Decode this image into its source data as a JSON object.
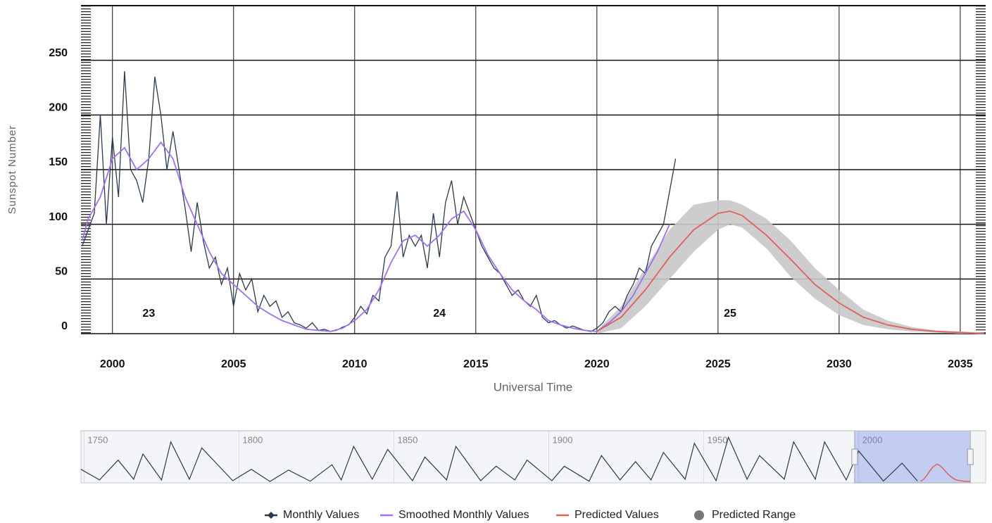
{
  "chart_data": {
    "type": "line",
    "y_label": "Sunspot Number",
    "x_label": "Universal Time",
    "xlim": [
      1998.7,
      2036.05
    ],
    "xticks": [
      2000,
      2005,
      2010,
      2015,
      2020,
      2025,
      2030,
      2035
    ],
    "ylim": [
      0,
      300
    ],
    "yticks": [
      0,
      50,
      100,
      150,
      200,
      250
    ],
    "grid": true,
    "annotations": [
      {
        "text": "23",
        "x": 2001.5
      },
      {
        "text": "24",
        "x": 2013.5
      },
      {
        "text": "25",
        "x": 2025.5
      }
    ],
    "series": [
      {
        "name": "Monthly Values",
        "color": "#2b3a4a",
        "x": [
          1998.75,
          1999,
          1999.25,
          1999.5,
          1999.75,
          2000,
          2000.25,
          2000.5,
          2000.75,
          2001,
          2001.25,
          2001.5,
          2001.75,
          2002,
          2002.25,
          2002.5,
          2002.75,
          2003,
          2003.25,
          2003.5,
          2003.75,
          2004,
          2004.25,
          2004.5,
          2004.75,
          2005,
          2005.25,
          2005.5,
          2005.75,
          2006,
          2006.25,
          2006.5,
          2006.75,
          2007,
          2007.25,
          2007.5,
          2007.75,
          2008,
          2008.25,
          2008.5,
          2008.75,
          2009,
          2009.25,
          2009.5,
          2009.75,
          2010,
          2010.25,
          2010.5,
          2010.75,
          2011,
          2011.25,
          2011.5,
          2011.75,
          2012,
          2012.25,
          2012.5,
          2012.75,
          2013,
          2013.25,
          2013.5,
          2013.75,
          2014,
          2014.25,
          2014.5,
          2014.75,
          2015,
          2015.25,
          2015.5,
          2015.75,
          2016,
          2016.25,
          2016.5,
          2016.75,
          2017,
          2017.25,
          2017.5,
          2017.75,
          2018,
          2018.25,
          2018.5,
          2018.75,
          2019,
          2019.25,
          2019.5,
          2019.75,
          2020,
          2020.25,
          2020.5,
          2020.75,
          2021,
          2021.25,
          2021.5,
          2021.75,
          2022,
          2022.25,
          2022.5,
          2022.75,
          2023,
          2023.25
        ],
        "values": [
          80,
          95,
          110,
          200,
          100,
          180,
          125,
          240,
          150,
          140,
          120,
          160,
          235,
          200,
          150,
          185,
          150,
          115,
          75,
          120,
          85,
          60,
          70,
          45,
          60,
          25,
          55,
          40,
          50,
          20,
          35,
          25,
          30,
          15,
          20,
          10,
          8,
          5,
          10,
          3,
          4,
          2,
          3,
          6,
          8,
          15,
          25,
          18,
          35,
          30,
          70,
          80,
          130,
          70,
          90,
          80,
          90,
          60,
          110,
          70,
          120,
          140,
          100,
          125,
          110,
          95,
          80,
          70,
          60,
          55,
          45,
          35,
          40,
          30,
          25,
          35,
          15,
          10,
          12,
          8,
          5,
          7,
          5,
          3,
          2,
          5,
          10,
          20,
          25,
          20,
          35,
          45,
          60,
          55,
          80,
          90,
          100,
          130,
          160
        ]
      },
      {
        "name": "Smoothed Monthly Values",
        "color": "#a070f0",
        "x": [
          1998.75,
          1999,
          1999.5,
          2000,
          2000.5,
          2001,
          2001.5,
          2002,
          2002.5,
          2003,
          2003.5,
          2004,
          2004.5,
          2005,
          2005.5,
          2006,
          2006.5,
          2007,
          2007.5,
          2008,
          2008.5,
          2009,
          2009.5,
          2010,
          2010.5,
          2011,
          2011.5,
          2012,
          2012.5,
          2013,
          2013.5,
          2014,
          2014.5,
          2015,
          2015.5,
          2016,
          2016.5,
          2017,
          2017.5,
          2018,
          2018.5,
          2019,
          2019.5,
          2020,
          2020.5,
          2021,
          2021.5,
          2022,
          2022.5,
          2023
        ],
        "values": [
          85,
          105,
          125,
          160,
          170,
          150,
          160,
          175,
          160,
          125,
          100,
          75,
          55,
          45,
          35,
          25,
          18,
          12,
          8,
          4,
          3,
          2,
          5,
          12,
          22,
          40,
          65,
          85,
          90,
          80,
          90,
          105,
          112,
          95,
          72,
          55,
          40,
          30,
          22,
          12,
          8,
          5,
          3,
          2,
          10,
          20,
          35,
          55,
          75,
          100
        ]
      },
      {
        "name": "Predicted Values",
        "color": "#e0605a",
        "x": [
          2020,
          2021,
          2022,
          2023,
          2024,
          2025,
          2025.5,
          2026,
          2027,
          2028,
          2029,
          2030,
          2031,
          2032,
          2033,
          2034,
          2035,
          2036
        ],
        "values": [
          2,
          15,
          40,
          70,
          95,
          110,
          112,
          108,
          90,
          68,
          45,
          28,
          15,
          8,
          4,
          2,
          1,
          0
        ]
      },
      {
        "name": "Predicted Range",
        "color": "#c8c8c8",
        "x": [
          2020,
          2021,
          2022,
          2023,
          2024,
          2025,
          2025.5,
          2026,
          2027,
          2028,
          2029,
          2030,
          2031,
          2032,
          2033,
          2034,
          2035,
          2036
        ],
        "high": [
          3,
          25,
          60,
          95,
          118,
          122,
          122,
          118,
          105,
          85,
          60,
          40,
          22,
          12,
          6,
          3,
          2,
          1
        ],
        "low": [
          0,
          5,
          25,
          50,
          75,
          95,
          100,
          97,
          78,
          52,
          32,
          17,
          8,
          4,
          2,
          1,
          0,
          0
        ]
      }
    ],
    "navigator": {
      "xlim": [
        1749,
        2041
      ],
      "xticks": [
        1750,
        1800,
        1850,
        1900,
        1950,
        2000
      ],
      "selection": [
        1998.7,
        2036.05
      ],
      "color": "#2b3a4a",
      "x": [
        1749,
        1755,
        1761,
        1766,
        1769,
        1775,
        1778,
        1784,
        1788,
        1798,
        1804,
        1810,
        1816,
        1823,
        1830,
        1833,
        1837,
        1843,
        1848,
        1856,
        1860,
        1867,
        1870,
        1878,
        1883,
        1889,
        1893,
        1901,
        1905,
        1913,
        1917,
        1923,
        1928,
        1933,
        1937,
        1944,
        1947,
        1954,
        1958,
        1964,
        1968,
        1976,
        1979,
        1986,
        1989,
        1996,
        2000,
        2008,
        2014,
        2019
      ],
      "values": [
        80,
        10,
        140,
        15,
        180,
        10,
        260,
        15,
        220,
        5,
        80,
        0,
        75,
        2,
        110,
        10,
        230,
        15,
        210,
        5,
        160,
        10,
        230,
        5,
        100,
        10,
        140,
        5,
        100,
        2,
        170,
        10,
        130,
        10,
        190,
        15,
        250,
        5,
        290,
        15,
        170,
        15,
        260,
        15,
        260,
        10,
        200,
        3,
        120,
        3
      ]
    }
  }
}
